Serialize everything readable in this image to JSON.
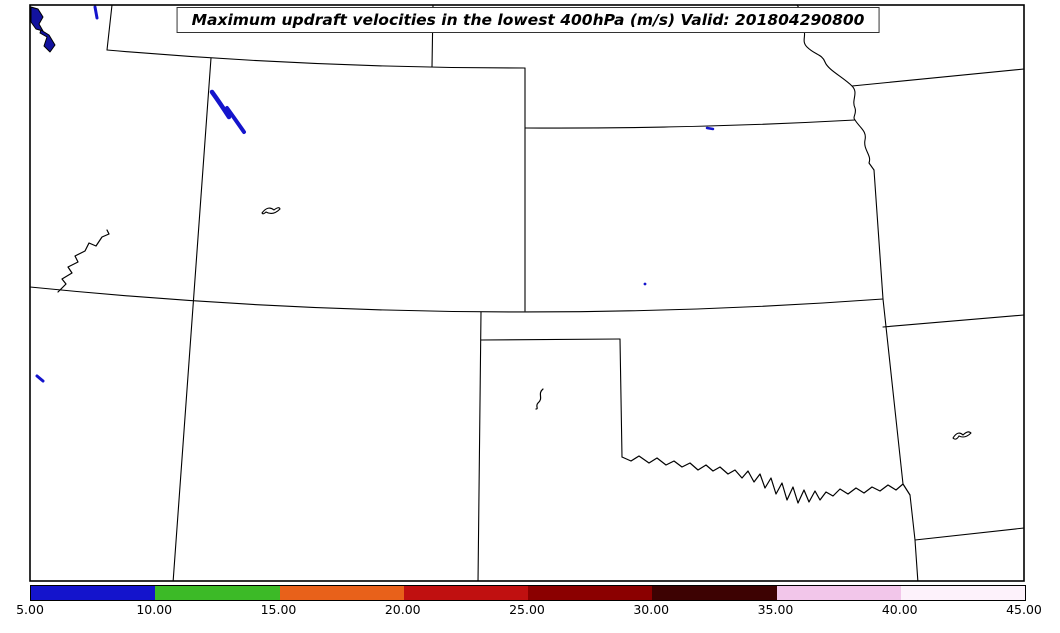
{
  "figure": {
    "title": "Maximum updraft velocities in the lowest 400hPa (m/s) Valid: 201804290800"
  },
  "chart_data": {
    "type": "heatmap",
    "title": "Maximum updraft velocities in the lowest 400hPa (m/s) Valid: 201804290800",
    "variable": "Maximum updraft velocity in the lowest 400hPa",
    "units": "m/s",
    "valid_time": "201804290800",
    "colorbar": {
      "orientation": "horizontal",
      "range": [
        5,
        45
      ],
      "ticks": [
        5,
        10,
        15,
        20,
        25,
        30,
        35,
        40,
        45
      ],
      "tick_labels": [
        "5.00",
        "10.00",
        "15.00",
        "20.00",
        "25.00",
        "30.00",
        "35.00",
        "40.00",
        "45.00"
      ],
      "segment_colors": [
        "#1414cc",
        "#3cba27",
        "#e8611a",
        "#c01010",
        "#8b0000",
        "#3d0202",
        "#f2c6ea",
        "#fdf2fb"
      ]
    },
    "regions": [
      {
        "range_ms": "5-10",
        "color": "#1414cc",
        "description": "Two small elongated streaks in far northwest Colorado / south of Wyoming border"
      },
      {
        "range_ms": "5-10",
        "color": "#1414cc",
        "description": "Tiny speck at left edge in southern Utah"
      },
      {
        "range_ms": "5-10",
        "color": "#1414cc",
        "description": "Tiny speck on the Kansas-Nebraska border"
      },
      {
        "range_ms": "5-10",
        "color": "#1414cc",
        "description": "Tiny speck in central Kansas"
      },
      {
        "range_ms": "5-10",
        "color": "#1414cc",
        "description": "Small dash near Great Salt Lake, northern Utah"
      }
    ],
    "map": {
      "region": "Central United States",
      "states_visible": [
        "Utah",
        "Wyoming",
        "Colorado",
        "Nebraska",
        "Kansas",
        "New Mexico",
        "Oklahoma",
        "Texas",
        "Missouri",
        "Iowa",
        "Arkansas",
        "Arizona"
      ],
      "water_features": [
        "Great Salt Lake",
        "Lake Powell",
        "Missouri River",
        "Red River"
      ]
    }
  }
}
